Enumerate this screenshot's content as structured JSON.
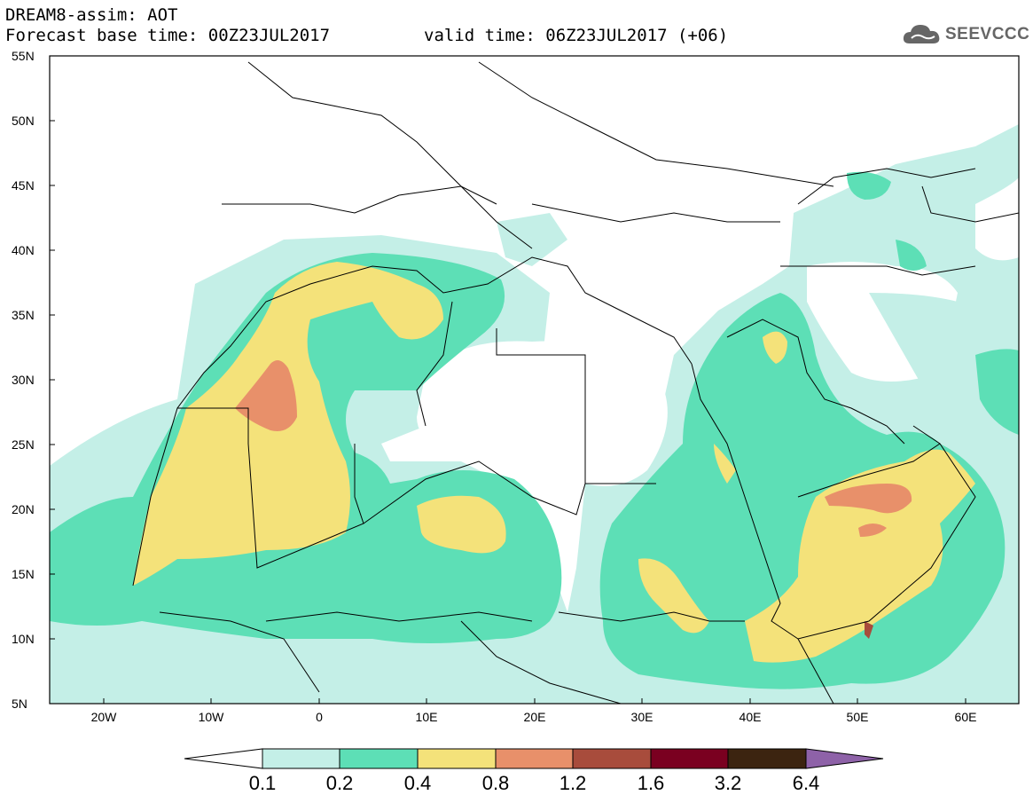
{
  "header": {
    "model_title": "DREAM8-assim: AOT",
    "base_time": "Forecast base time: 00Z23JUL2017",
    "valid_time": "valid time: 06Z23JUL2017 (+06)",
    "logo_text": "SEEVCCC",
    "logo_icon": "cloud-icon"
  },
  "map": {
    "lon_range": [
      -25,
      65
    ],
    "lat_range": [
      5,
      55
    ],
    "lat_labels": [
      "55N",
      "50N",
      "45N",
      "40N",
      "35N",
      "30N",
      "25N",
      "20N",
      "15N",
      "10N",
      "5N"
    ],
    "lon_labels": [
      "20W",
      "10W",
      "0",
      "10E",
      "20E",
      "30E",
      "40E",
      "50E",
      "60E"
    ],
    "background": "#ffffff"
  },
  "colorbar": {
    "levels": [
      "0.1",
      "0.2",
      "0.4",
      "0.8",
      "1.2",
      "1.6",
      "3.2",
      "6.4"
    ],
    "colors": [
      "#ffffff",
      "#c4efe7",
      "#5ddfb6",
      "#f4e27a",
      "#e8906a",
      "#a84c3c",
      "#7a0020",
      "#3c2410",
      "#8e62a8"
    ]
  }
}
